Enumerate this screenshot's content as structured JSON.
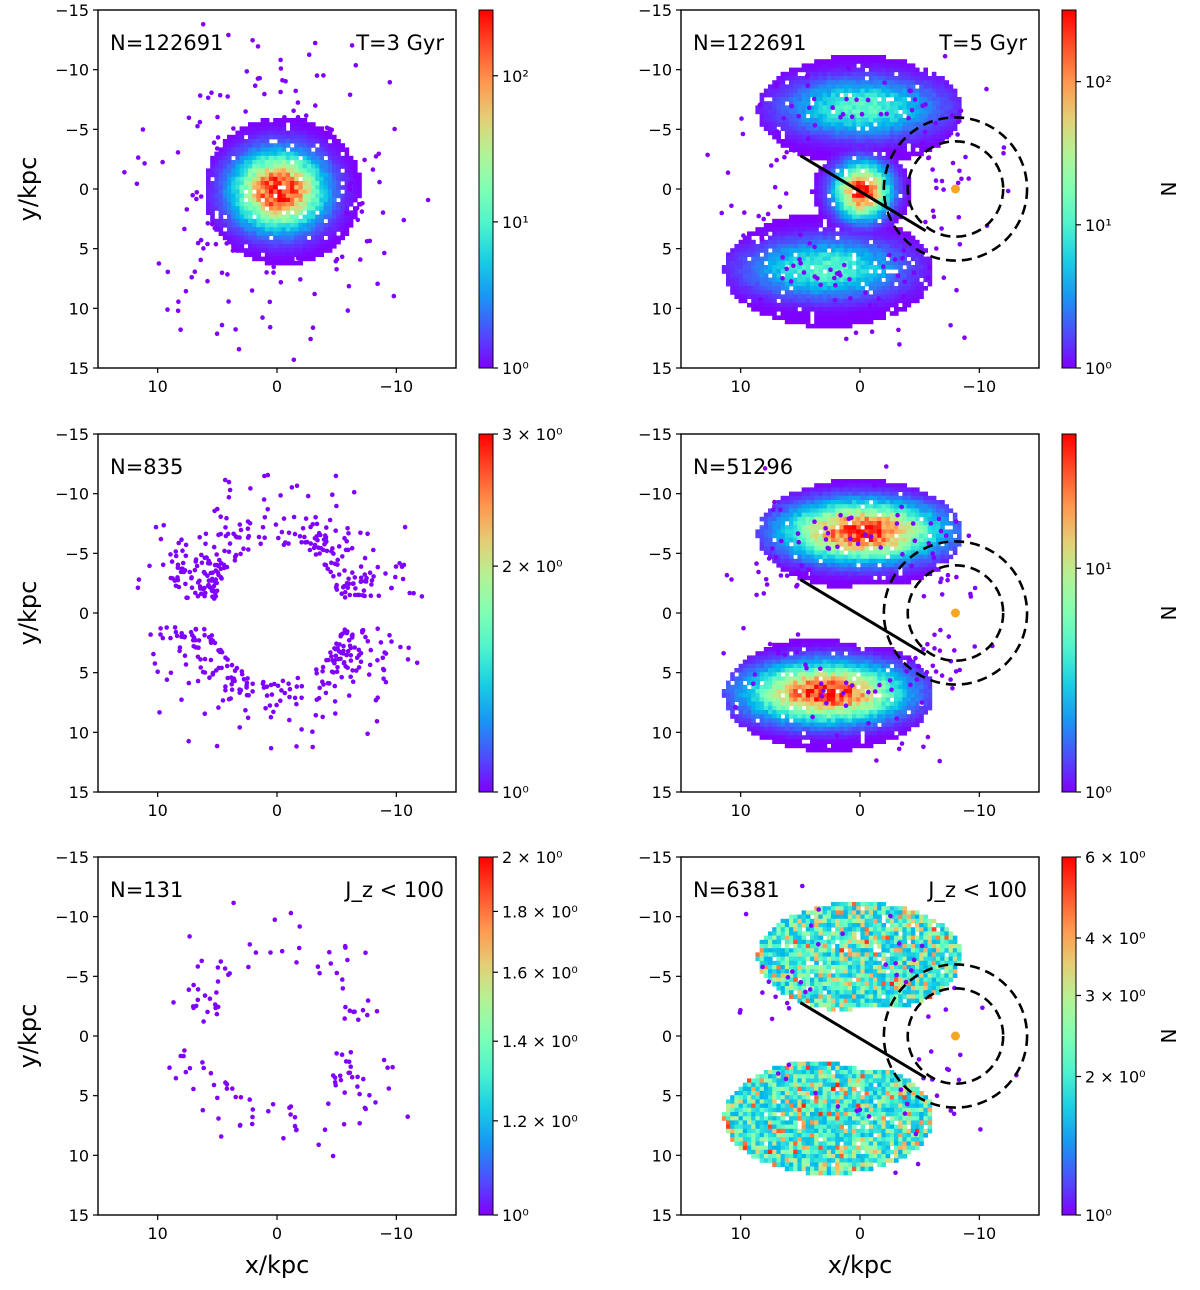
{
  "figure": {
    "panels": [
      {
        "id": "p1",
        "n_label": "N=122691",
        "corner_label": "T=3 Gyr",
        "show_ylabel": true,
        "show_xlabel": false,
        "colorbar": {
          "ticks": [
            "10⁰",
            "10¹",
            "10²"
          ],
          "tick_values": [
            0,
            1,
            2
          ],
          "max_log": 2.45,
          "title": ""
        },
        "structure": "central",
        "has_overlay": false
      },
      {
        "id": "p2",
        "n_label": "N=122691",
        "corner_label": "T=5 Gyr",
        "show_ylabel": false,
        "show_xlabel": false,
        "colorbar": {
          "ticks": [
            "10⁰",
            "10¹",
            "10²"
          ],
          "tick_values": [
            0,
            1,
            2
          ],
          "max_log": 2.5,
          "title": "N"
        },
        "structure": "ring_with_core",
        "has_overlay": true
      },
      {
        "id": "p3",
        "n_label": "N=835",
        "corner_label": "",
        "show_ylabel": true,
        "show_xlabel": false,
        "colorbar": {
          "ticks": [
            "10⁰",
            "2 × 10⁰",
            "3 × 10⁰"
          ],
          "tick_values": [
            0,
            0.30103,
            0.47712
          ],
          "max_log": 0.47712,
          "title": ""
        },
        "structure": "sparse_ring",
        "has_overlay": false
      },
      {
        "id": "p4",
        "n_label": "N=51296",
        "corner_label": "",
        "show_ylabel": false,
        "show_xlabel": false,
        "colorbar": {
          "ticks": [
            "10⁰",
            "10¹"
          ],
          "tick_values": [
            0,
            1
          ],
          "max_log": 1.6,
          "title": "N"
        },
        "structure": "ring",
        "has_overlay": true
      },
      {
        "id": "p5",
        "n_label": "N=131",
        "corner_label": "J_z < 100",
        "show_ylabel": true,
        "show_xlabel": true,
        "colorbar": {
          "ticks": [
            "10⁰",
            "1.2 × 10⁰",
            "1.4 × 10⁰",
            "1.6 × 10⁰",
            "1.8 × 10⁰",
            "2 × 10⁰"
          ],
          "tick_values": [
            0,
            0.07918,
            0.14613,
            0.20412,
            0.25527,
            0.30103
          ],
          "max_log": 0.30103,
          "title": ""
        },
        "structure": "very_sparse_ring",
        "has_overlay": false
      },
      {
        "id": "p6",
        "n_label": "N=6381",
        "corner_label": "J_z < 100",
        "show_ylabel": false,
        "show_xlabel": true,
        "colorbar": {
          "ticks": [
            "10⁰",
            "2 × 10⁰",
            "3 × 10⁰",
            "4 × 10⁰",
            "6 × 10⁰"
          ],
          "tick_values": [
            0,
            0.30103,
            0.47712,
            0.60206,
            0.77815
          ],
          "max_log": 0.77815,
          "title": "N"
        },
        "structure": "noisy_ring",
        "has_overlay": true
      }
    ]
  },
  "chart_data": {
    "type": "heatmap",
    "xlabel": "x/kpc",
    "ylabel": "y/kpc",
    "xlim": [
      15,
      -15
    ],
    "ylim": [
      -15,
      15
    ],
    "x_ticks": [
      10,
      0,
      -10
    ],
    "x_tick_labels": [
      "10",
      "0",
      "−10"
    ],
    "y_ticks": [
      -15,
      -10,
      -5,
      0,
      5,
      10,
      15
    ],
    "y_tick_labels": [
      "−15",
      "−10",
      "−5",
      "0",
      "5",
      "10",
      "15"
    ],
    "colormap": "rainbow",
    "color_scale": "log",
    "overlay": {
      "bar_line": {
        "x": [
          5,
          -5.5
        ],
        "y": [
          -2.8,
          3.5
        ]
      },
      "circles": [
        {
          "cx": -8,
          "cy": 0,
          "r": 4
        },
        {
          "cx": -8,
          "cy": 0,
          "r": 6
        }
      ],
      "sun_marker": {
        "x": -8,
        "y": 0,
        "color": "#f5a623"
      }
    }
  }
}
